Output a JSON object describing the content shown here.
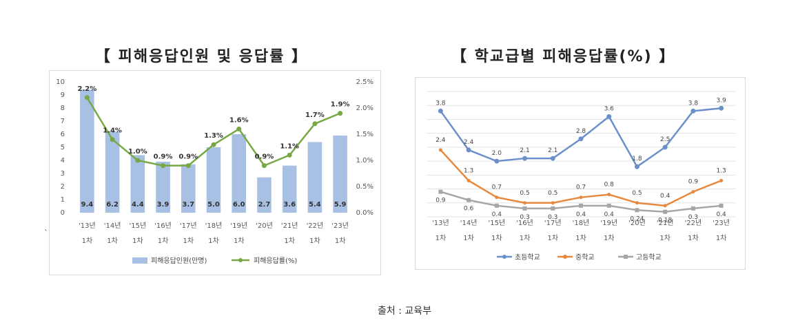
{
  "left_title": "【 피해응답인원 및 응답률 】",
  "right_title": "【 학교급별 피해응답률(%) 】",
  "source_text": "출처 : 교육부",
  "stray_mark": "`",
  "chart_data": [
    {
      "type": "bar",
      "title": "",
      "categories": [
        [
          "'13년",
          "1차"
        ],
        [
          "'14년",
          "1차"
        ],
        [
          "'15년",
          "1차"
        ],
        [
          "'16년",
          "1차"
        ],
        [
          "'17년",
          "1차"
        ],
        [
          "'18년",
          "1차"
        ],
        [
          "'19년",
          "1차"
        ],
        [
          "'20년",
          ""
        ],
        [
          "'21년",
          "1차"
        ],
        [
          "'22년",
          "1차"
        ],
        [
          "'23년",
          "1차"
        ]
      ],
      "y_left_ticks": [
        "0",
        "1",
        "2",
        "3",
        "4",
        "5",
        "6",
        "7",
        "8",
        "9",
        "10"
      ],
      "y_right_ticks": [
        "0.0%",
        "0.5%",
        "1.0%",
        "1.5%",
        "2.0%",
        "2.5%"
      ],
      "ylim_left": [
        0,
        10
      ],
      "ylim_right": [
        0,
        2.5
      ],
      "bar_series": {
        "name": "피해응답인원(만명)",
        "values": [
          9.4,
          6.2,
          4.4,
          3.9,
          3.7,
          5.0,
          6.0,
          2.7,
          3.6,
          5.4,
          5.9
        ],
        "labels": [
          "9.4",
          "6.2",
          "4.4",
          "3.9",
          "3.7",
          "5.0",
          "6.0",
          "2.7",
          "3.6",
          "5.4",
          "5.9"
        ],
        "color": "#a7c0e3"
      },
      "line_series": {
        "name": "피해응답률(%)",
        "values": [
          2.2,
          1.4,
          1.0,
          0.9,
          0.9,
          1.3,
          1.6,
          0.9,
          1.1,
          1.7,
          1.9
        ],
        "labels": [
          "2.2%",
          "1.4%",
          "1.0%",
          "0.9%",
          "0.9%",
          "1.3%",
          "1.6%",
          "0.9%",
          "1.1%",
          "1.7%",
          "1.9%"
        ],
        "color": "#77a843"
      },
      "legend_position": "bottom"
    },
    {
      "type": "line",
      "title": "",
      "categories": [
        [
          "'13년",
          "1차"
        ],
        [
          "'14년",
          "1차"
        ],
        [
          "'15년",
          "1차"
        ],
        [
          "'16년",
          "1차"
        ],
        [
          "'17년",
          "1차"
        ],
        [
          "'18년",
          "1차"
        ],
        [
          "'19년",
          "1차"
        ],
        [
          "'20년",
          ""
        ],
        [
          "'21년",
          "1차"
        ],
        [
          "'22년",
          "1차"
        ],
        [
          "'23년",
          "1차"
        ]
      ],
      "ylim": [
        0,
        4.5
      ],
      "grid": true,
      "series": [
        {
          "name": "초등학교",
          "color": "#6b8fc9",
          "values": [
            3.8,
            2.4,
            2.0,
            2.1,
            2.1,
            2.8,
            3.6,
            1.8,
            2.5,
            3.8,
            3.9
          ],
          "labels": [
            "3.8",
            "2.4",
            "2.0",
            "2.1",
            "2.1",
            "2.8",
            "3.6",
            "1.8",
            "2.5",
            "3.8",
            "3.9"
          ]
        },
        {
          "name": "중학교",
          "color": "#e8883c",
          "values": [
            2.4,
            1.3,
            0.7,
            0.5,
            0.5,
            0.7,
            0.8,
            0.5,
            0.4,
            0.9,
            1.3
          ],
          "labels": [
            "2.4",
            "1.3",
            "0.7",
            "0.5",
            "0.5",
            "0.7",
            "0.8",
            "0.5",
            "0.4",
            "0.9",
            "1.3"
          ]
        },
        {
          "name": "고등학교",
          "color": "#a6a6a6",
          "values": [
            0.9,
            0.6,
            0.4,
            0.3,
            0.3,
            0.4,
            0.4,
            0.24,
            0.18,
            0.3,
            0.4
          ],
          "labels": [
            "0.9",
            "0.6",
            "0.4",
            "0.3",
            "0.3",
            "0.4",
            "0.4",
            "0.24",
            "0.18",
            "0.3",
            "0.4"
          ]
        }
      ],
      "legend_position": "bottom"
    }
  ]
}
